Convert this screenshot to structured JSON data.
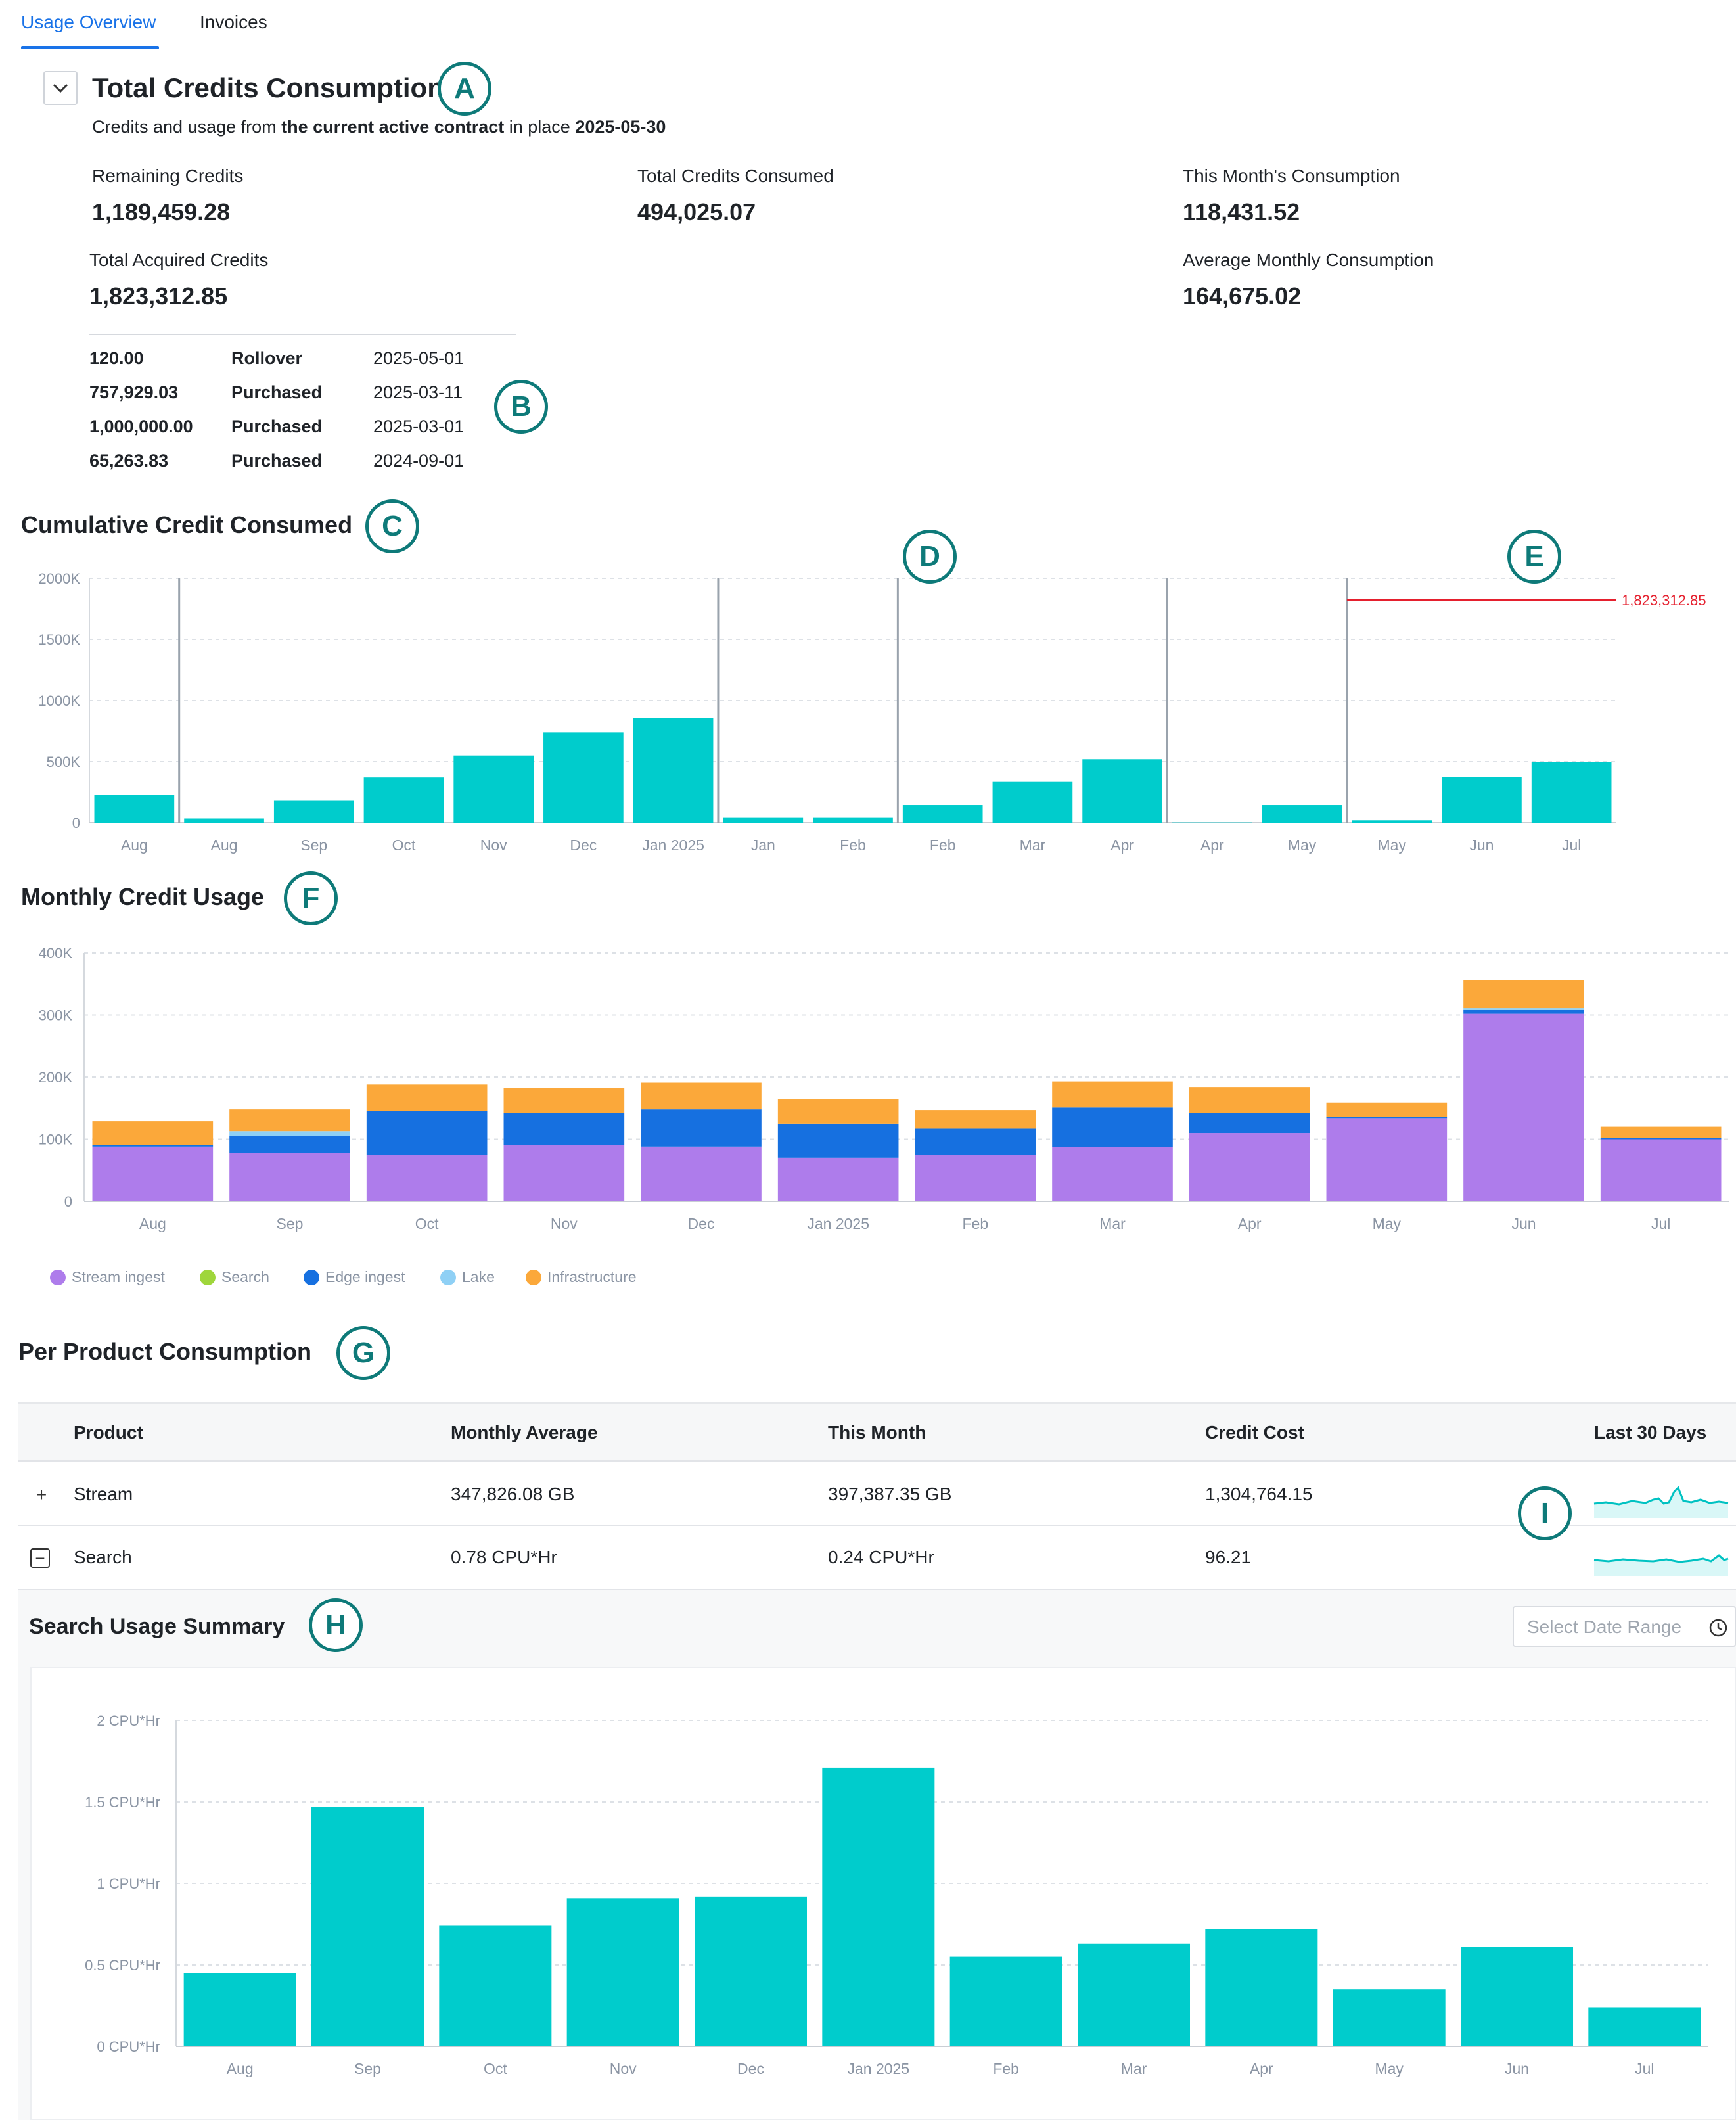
{
  "tabs": [
    {
      "label": "Usage Overview",
      "active": true
    },
    {
      "label": "Invoices",
      "active": false
    }
  ],
  "badges": [
    "A",
    "B",
    "C",
    "D",
    "E",
    "F",
    "G",
    "H",
    "I"
  ],
  "total": {
    "title": "Total Credits Consumption",
    "subtitle_pre": "Credits and usage from ",
    "subtitle_bold": "the current active contract",
    "subtitle_mid": " in place ",
    "subtitle_date": "2025-05-30",
    "remaining_label": "Remaining Credits",
    "remaining_value": "1,189,459.28",
    "consumed_label": "Total Credits Consumed",
    "consumed_value": "494,025.07",
    "month_label": "This Month's Consumption",
    "month_value": "118,431.52",
    "acquired_label": "Total Acquired Credits",
    "acquired_value": "1,823,312.85",
    "avg_label": "Average Monthly Consumption",
    "avg_value": "164,675.02",
    "acquisitions": [
      {
        "amount": "120.00",
        "type": "Rollover",
        "date": "2025-05-01"
      },
      {
        "amount": "757,929.03",
        "type": "Purchased",
        "date": "2025-03-11"
      },
      {
        "amount": "1,000,000.00",
        "type": "Purchased",
        "date": "2025-03-01"
      },
      {
        "amount": "65,263.83",
        "type": "Purchased",
        "date": "2024-09-01"
      }
    ]
  },
  "cumulative": {
    "title": "Cumulative Credit Consumed"
  },
  "monthly": {
    "title": "Monthly Credit Usage"
  },
  "per_product": {
    "title": "Per Product Consumption",
    "headers": [
      "Product",
      "Monthly Average",
      "This Month",
      "Credit Cost",
      "Last 30 Days"
    ],
    "rows": [
      {
        "product": "Stream",
        "monthly_average": "347,826.08 GB",
        "this_month": "397,387.35 GB",
        "credit_cost": "1,304,764.15",
        "expanded": false
      },
      {
        "product": "Search",
        "monthly_average": "0.78 CPU*Hr",
        "this_month": "0.24 CPU*Hr",
        "credit_cost": "96.21",
        "expanded": true
      }
    ]
  },
  "search_summary": {
    "title": "Search Usage Summary",
    "date_placeholder": "Select Date Range"
  },
  "colors": {
    "accent": "#1a73e8",
    "teal": "#00cccc",
    "badge": "#0e7a79",
    "threshold": "#e5202e",
    "stream_ingest": "#ae7ceb",
    "search": "#9fd63b",
    "edge_ingest": "#1670e0",
    "lake": "#8fd0f5",
    "infrastructure": "#fba83a"
  },
  "chart_data": [
    {
      "id": "cumulative",
      "type": "bar",
      "title": "Cumulative Credit Consumed",
      "categories": [
        "Aug",
        "Aug",
        "Sep",
        "Oct",
        "Nov",
        "Dec",
        "Jan 2025",
        "Jan",
        "Feb",
        "Feb",
        "Mar",
        "Apr",
        "Apr",
        "May",
        "May",
        "Jun",
        "Jul"
      ],
      "values": [
        230000,
        35000,
        180000,
        370000,
        550000,
        740000,
        860000,
        45000,
        45000,
        145000,
        335000,
        520000,
        2000,
        145000,
        20000,
        375000,
        495000
      ],
      "period_separators_after_index": [
        0,
        6,
        8,
        11,
        13
      ],
      "threshold": {
        "value": 1823312.85,
        "label": "1,823,312.85",
        "from_index": 14
      },
      "yticks": [
        0,
        500000,
        1000000,
        1500000,
        2000000
      ],
      "ytick_labels": [
        "0",
        "500K",
        "1000K",
        "1500K",
        "2000K"
      ],
      "ylim": [
        0,
        2000000
      ]
    },
    {
      "id": "monthly",
      "type": "bar",
      "stacked": true,
      "title": "Monthly Credit Usage",
      "categories": [
        "Aug",
        "Sep",
        "Oct",
        "Nov",
        "Dec",
        "Jan 2025",
        "Feb",
        "Mar",
        "Apr",
        "May",
        "Jun",
        "Jul"
      ],
      "series": [
        {
          "name": "Stream ingest",
          "color": "#ae7ceb",
          "values": [
            88000,
            78000,
            75000,
            90000,
            88000,
            70000,
            75000,
            87000,
            110000,
            133000,
            302000,
            100000
          ]
        },
        {
          "name": "Search",
          "color": "#9fd63b",
          "values": [
            0,
            0,
            0,
            0,
            0,
            0,
            0,
            0,
            0,
            0,
            0,
            0
          ]
        },
        {
          "name": "Edge ingest",
          "color": "#1670e0",
          "values": [
            3000,
            27000,
            70000,
            52000,
            60000,
            55000,
            42000,
            64000,
            32000,
            3000,
            6000,
            2000
          ]
        },
        {
          "name": "Lake",
          "color": "#8fd0f5",
          "values": [
            0,
            8000,
            0,
            0,
            0,
            0,
            0,
            0,
            0,
            0,
            3000,
            0
          ]
        },
        {
          "name": "Infrastructure",
          "color": "#fba83a",
          "values": [
            38000,
            35000,
            43000,
            40000,
            43000,
            39000,
            30000,
            42000,
            42000,
            23000,
            45000,
            18000
          ]
        }
      ],
      "yticks": [
        0,
        100000,
        200000,
        300000,
        400000
      ],
      "ytick_labels": [
        "0",
        "100K",
        "200K",
        "300K",
        "400K"
      ],
      "ylim": [
        0,
        400000
      ]
    },
    {
      "id": "search_summary",
      "type": "bar",
      "title": "Search Usage Summary",
      "categories": [
        "Aug",
        "Sep",
        "Oct",
        "Nov",
        "Dec",
        "Jan 2025",
        "Feb",
        "Mar",
        "Apr",
        "May",
        "Jun",
        "Jul"
      ],
      "values": [
        0.45,
        1.47,
        0.74,
        0.91,
        0.92,
        1.71,
        0.55,
        0.63,
        0.72,
        0.35,
        0.61,
        0.24
      ],
      "yticks": [
        0,
        0.5,
        1,
        1.5,
        2
      ],
      "ytick_labels": [
        "0 CPU*Hr",
        "0.5 CPU*Hr",
        "1 CPU*Hr",
        "1.5 CPU*Hr",
        "2 CPU*Hr"
      ],
      "ylim": [
        0,
        2
      ]
    }
  ]
}
